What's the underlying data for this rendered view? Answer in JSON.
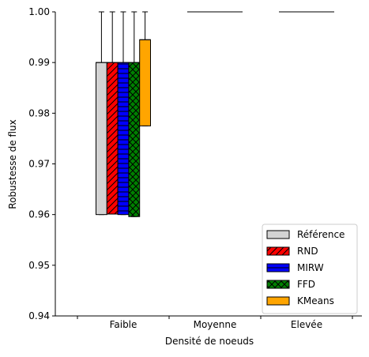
{
  "chart_data": {
    "type": "box",
    "xlabel": "Densité de noeuds",
    "ylabel": "Robustesse de flux",
    "categories": [
      "Faible",
      "Moyenne",
      "Elevée"
    ],
    "ylim": [
      0.94,
      1.0
    ],
    "yticks": [
      0.94,
      0.95,
      0.96,
      0.97,
      0.98,
      0.99,
      1.0
    ],
    "ytick_labels": [
      "0.94",
      "0.95",
      "0.96",
      "0.97",
      "0.98",
      "0.99",
      "1.00"
    ],
    "legend_position": "lower-right",
    "grid": false,
    "series": [
      {
        "name": "Référence",
        "color": "#d3d3d3",
        "hatch": "none",
        "boxes": [
          {
            "min": 0.96,
            "q1": 0.96,
            "median": 0.99,
            "q3": 0.99,
            "max": 1.0
          },
          {
            "min": 1.0,
            "q1": 1.0,
            "median": 1.0,
            "q3": 1.0,
            "max": 1.0
          },
          {
            "min": 1.0,
            "q1": 1.0,
            "median": 1.0,
            "q3": 1.0,
            "max": 1.0
          }
        ]
      },
      {
        "name": "RND",
        "color": "#ff0000",
        "hatch": "diagonal",
        "boxes": [
          {
            "min": 0.9601,
            "q1": 0.9601,
            "median": 0.99,
            "q3": 0.99,
            "max": 1.0
          },
          {
            "min": 1.0,
            "q1": 1.0,
            "median": 1.0,
            "q3": 1.0,
            "max": 1.0
          },
          {
            "min": 1.0,
            "q1": 1.0,
            "median": 1.0,
            "q3": 1.0,
            "max": 1.0
          }
        ]
      },
      {
        "name": "MIRW",
        "color": "#0000ff",
        "hatch": "horizontal",
        "boxes": [
          {
            "min": 0.96,
            "q1": 0.96,
            "median": 0.99,
            "q3": 0.99,
            "max": 1.0
          },
          {
            "min": 1.0,
            "q1": 1.0,
            "median": 1.0,
            "q3": 1.0,
            "max": 1.0
          },
          {
            "min": 1.0,
            "q1": 1.0,
            "median": 1.0,
            "q3": 1.0,
            "max": 1.0
          }
        ]
      },
      {
        "name": "FFD",
        "color": "#008000",
        "hatch": "cross",
        "boxes": [
          {
            "min": 0.9596,
            "q1": 0.9596,
            "median": 0.99,
            "q3": 0.99,
            "max": 1.0
          },
          {
            "min": 1.0,
            "q1": 1.0,
            "median": 1.0,
            "q3": 1.0,
            "max": 1.0
          },
          {
            "min": 1.0,
            "q1": 1.0,
            "median": 1.0,
            "q3": 1.0,
            "max": 1.0
          }
        ]
      },
      {
        "name": "KMeans",
        "color": "#ffa500",
        "hatch": "none",
        "boxes": [
          {
            "min": 0.9775,
            "q1": 0.9775,
            "median": 0.9945,
            "q3": 0.9945,
            "max": 1.0
          },
          {
            "min": 1.0,
            "q1": 1.0,
            "median": 1.0,
            "q3": 1.0,
            "max": 1.0
          },
          {
            "min": 1.0,
            "q1": 1.0,
            "median": 1.0,
            "q3": 1.0,
            "max": 1.0
          }
        ]
      }
    ]
  }
}
